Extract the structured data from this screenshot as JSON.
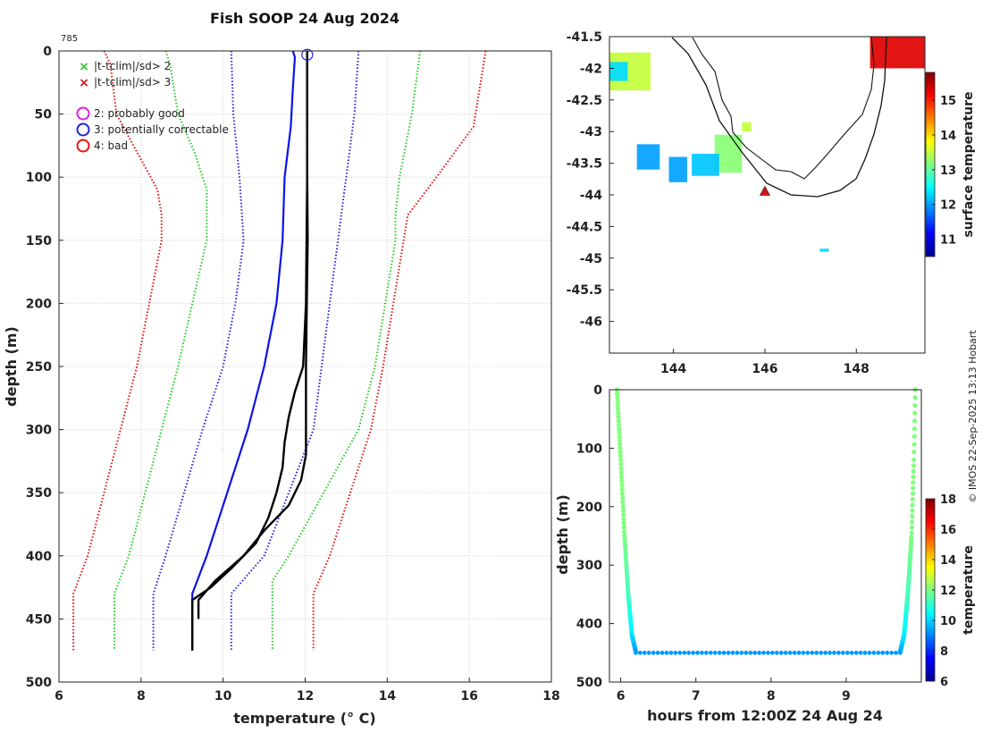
{
  "figure": {
    "title": "Fish SOOP 24 Aug 2024",
    "drop_id": "785",
    "credit": "© IMOS 22-Sep-2025 13:13 Hobart"
  },
  "colors": {
    "qc_green": "#22cc22",
    "qc_red": "#dd1111",
    "qc_magenta": "#dd22dd",
    "qc_blue": "#2222dd",
    "qc_red_circle": "#ee1111",
    "observed": "#000000",
    "clim_mean": "#0a14e6"
  },
  "legend": {
    "items": [
      {
        "symbol": "×",
        "color": "#22cc22",
        "label": "|t-tclim|/sd> 2"
      },
      {
        "symbol": "×",
        "color": "#dd1111",
        "label": "|t-tclim|/sd> 3"
      },
      {
        "symbol": "○",
        "color": "#dd22dd",
        "label": "2: probably good"
      },
      {
        "symbol": "○",
        "color": "#2222dd",
        "label": "3: potentially correctable"
      },
      {
        "symbol": "○",
        "color": "#ee1111",
        "label": "4: bad"
      }
    ]
  },
  "chart_data": [
    {
      "id": "profile",
      "type": "line",
      "xlabel": "temperature (° C)",
      "ylabel": "depth (m)",
      "xlim": [
        6,
        18
      ],
      "ylim": [
        0,
        500
      ],
      "y_reversed": true,
      "xticks": [
        6,
        8,
        10,
        12,
        14,
        16,
        18
      ],
      "yticks": [
        0,
        50,
        100,
        150,
        200,
        250,
        300,
        350,
        400,
        450,
        500
      ],
      "grid": true,
      "series": [
        {
          "name": "clim -3sd",
          "color": "#dd1111",
          "style": "dotted",
          "depth": [
            0,
            10,
            50,
            80,
            110,
            130,
            150,
            250,
            400,
            430,
            475
          ],
          "temp": [
            7.1,
            7.25,
            7.4,
            7.9,
            8.4,
            8.5,
            8.5,
            7.9,
            6.7,
            6.35,
            6.35
          ]
        },
        {
          "name": "clim -2sd",
          "color": "#22cc22",
          "style": "dotted",
          "depth": [
            0,
            10,
            50,
            80,
            110,
            130,
            150,
            250,
            400,
            430,
            475
          ],
          "temp": [
            8.6,
            8.7,
            8.9,
            9.3,
            9.6,
            9.6,
            9.6,
            8.9,
            7.7,
            7.35,
            7.35
          ]
        },
        {
          "name": "clim -1sd",
          "color": "#2222dd",
          "style": "dotted",
          "depth": [
            0,
            50,
            100,
            150,
            200,
            250,
            300,
            400,
            430,
            475
          ],
          "temp": [
            10.2,
            10.25,
            10.4,
            10.5,
            10.3,
            10.0,
            9.5,
            8.6,
            8.3,
            8.3
          ]
        },
        {
          "name": "clim mean",
          "color": "#0a14e6",
          "style": "solid",
          "depth": [
            0,
            5,
            30,
            60,
            100,
            150,
            200,
            250,
            300,
            350,
            400,
            430,
            475
          ],
          "temp": [
            11.7,
            11.75,
            11.7,
            11.65,
            11.5,
            11.45,
            11.3,
            11.0,
            10.6,
            10.1,
            9.6,
            9.25,
            9.25
          ]
        },
        {
          "name": "clim +1sd",
          "color": "#2222dd",
          "style": "dotted",
          "depth": [
            0,
            50,
            100,
            150,
            200,
            250,
            300,
            400,
            430,
            475
          ],
          "temp": [
            13.3,
            13.2,
            13.0,
            12.8,
            12.6,
            12.4,
            12.2,
            11.0,
            10.2,
            10.2
          ]
        },
        {
          "name": "clim +2sd",
          "color": "#22cc22",
          "style": "dotted",
          "depth": [
            0,
            50,
            100,
            130,
            150,
            250,
            300,
            400,
            420,
            475
          ],
          "temp": [
            14.8,
            14.6,
            14.3,
            14.2,
            14.2,
            13.7,
            13.3,
            11.6,
            11.2,
            11.2
          ]
        },
        {
          "name": "clim +3sd",
          "color": "#dd1111",
          "style": "dotted",
          "depth": [
            0,
            60,
            100,
            130,
            150,
            250,
            300,
            400,
            430,
            475
          ],
          "temp": [
            16.4,
            16.1,
            15.2,
            14.5,
            14.4,
            13.9,
            13.6,
            12.6,
            12.2,
            12.2
          ]
        },
        {
          "name": "observed down",
          "color": "#000000",
          "style": "solid",
          "depth": [
            0,
            50,
            100,
            150,
            200,
            250,
            300,
            320,
            340,
            360,
            380,
            400,
            420,
            435,
            445,
            450
          ],
          "temp": [
            12.05,
            12.05,
            12.05,
            12.06,
            12.04,
            12.02,
            12.02,
            12.02,
            11.9,
            11.6,
            11.0,
            10.5,
            9.8,
            9.4,
            9.4,
            9.4
          ]
        },
        {
          "name": "observed up",
          "color": "#000000",
          "style": "solid",
          "depth": [
            0,
            100,
            200,
            250,
            270,
            290,
            310,
            330,
            350,
            370,
            390,
            410,
            425,
            435,
            445,
            475
          ],
          "temp": [
            12.05,
            12.05,
            12.02,
            11.95,
            11.75,
            11.6,
            11.5,
            11.45,
            11.3,
            11.1,
            10.8,
            10.2,
            9.7,
            9.25,
            9.25,
            9.25
          ]
        }
      ],
      "annotations": [
        {
          "type": "circle",
          "temp": 12.05,
          "depth": 3,
          "color": "#2222dd"
        }
      ]
    },
    {
      "id": "sst_map",
      "type": "heatmap",
      "colorbar_label": "surface temperature",
      "clim": [
        10.5,
        15.8
      ],
      "colorbar_ticks": [
        11,
        12,
        13,
        14,
        15
      ],
      "xlim": [
        142.6,
        149.5
      ],
      "ylim": [
        -46.5,
        -41.5
      ],
      "xticks": [
        144,
        146,
        148
      ],
      "yticks": [
        -41.5,
        -42,
        -42.5,
        -43,
        -43.5,
        -44,
        -44.5,
        -45,
        -45.5,
        -46
      ],
      "marker": {
        "lon": 146.0,
        "lat": -43.95,
        "symbol": "triangle",
        "color": "#dd1111"
      },
      "patches": [
        {
          "lon": [
            142.6,
            143.5
          ],
          "lat": [
            -42.35,
            -41.75
          ],
          "temp": 13.5
        },
        {
          "lon": [
            142.6,
            143.0
          ],
          "lat": [
            -42.2,
            -41.9
          ],
          "temp": 12.3
        },
        {
          "lon": [
            144.9,
            145.5
          ],
          "lat": [
            -43.65,
            -43.05
          ],
          "temp": 13.2
        },
        {
          "lon": [
            144.4,
            145.0
          ],
          "lat": [
            -43.7,
            -43.35
          ],
          "temp": 12.2
        },
        {
          "lon": [
            143.2,
            143.7
          ],
          "lat": [
            -43.6,
            -43.2
          ],
          "temp": 12.0
        },
        {
          "lon": [
            143.9,
            144.3
          ],
          "lat": [
            -43.8,
            -43.4
          ],
          "temp": 12.0
        },
        {
          "lon": [
            145.5,
            145.7
          ],
          "lat": [
            -43.0,
            -42.85
          ],
          "temp": 13.5
        },
        {
          "lon": [
            147.2,
            147.4
          ],
          "lat": [
            -44.9,
            -44.85
          ],
          "temp": 12.3
        },
        {
          "lon": [
            148.3,
            149.5
          ],
          "lat": [
            -42.0,
            -41.5
          ],
          "temp": 15.3
        }
      ]
    },
    {
      "id": "depth_time",
      "type": "scatter",
      "xlabel": "hours from 12:00Z 24 Aug 24",
      "ylabel": "depth (m)",
      "colorbar_label": "temperature",
      "xlim": [
        5.85,
        10.0
      ],
      "ylim": [
        0,
        500
      ],
      "y_reversed": true,
      "xticks": [
        6,
        7,
        8,
        9
      ],
      "yticks": [
        0,
        100,
        200,
        300,
        400,
        500
      ],
      "clim": [
        6,
        18
      ],
      "colorbar_ticks": [
        6,
        8,
        10,
        12,
        14,
        16,
        18
      ],
      "descent": {
        "hours": [
          5.95,
          6.0,
          6.05,
          6.1,
          6.15,
          6.2
        ],
        "depth": [
          0,
          120,
          250,
          350,
          420,
          448
        ],
        "temp": [
          12.05,
          12.05,
          12.0,
          11.3,
          10.2,
          9.4
        ]
      },
      "bottom": {
        "hours": [
          6.2,
          9.72
        ],
        "depth": 450,
        "temp": 9.3
      },
      "ascent": {
        "hours": [
          9.72,
          9.77,
          9.82,
          9.87,
          9.9,
          9.92
        ],
        "depth": [
          448,
          420,
          350,
          250,
          120,
          0
        ],
        "temp": [
          9.4,
          10.2,
          11.3,
          12.0,
          12.05,
          12.05
        ]
      }
    }
  ]
}
